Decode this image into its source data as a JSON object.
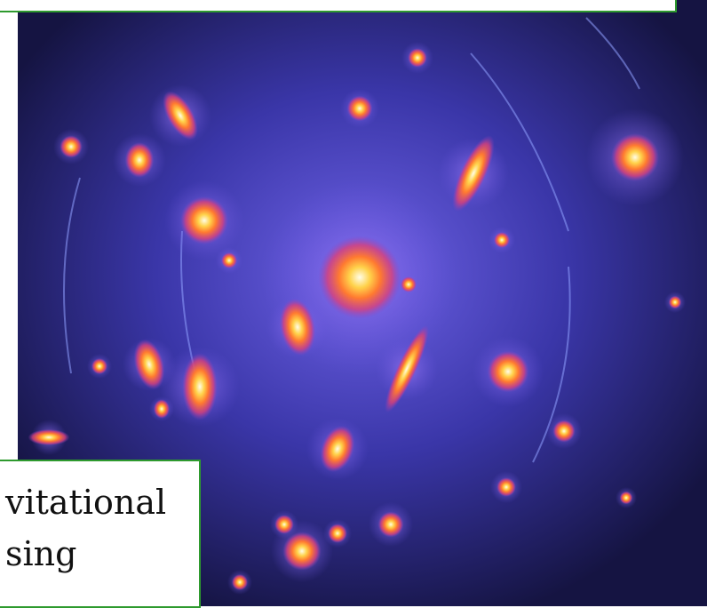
{
  "caption": {
    "lines": [
      "vitational",
      "sing"
    ]
  }
}
